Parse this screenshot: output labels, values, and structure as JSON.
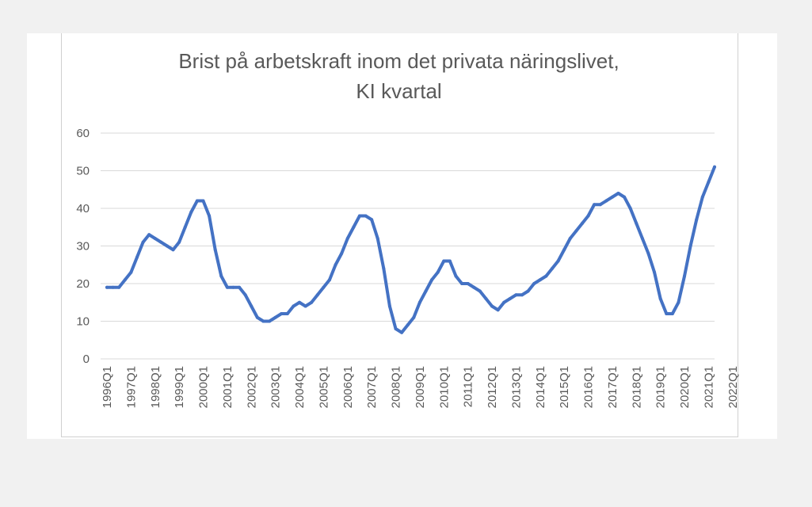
{
  "chart_data": {
    "type": "line",
    "title_line1": "Brist på arbetskraft inom det privata näringslivet,",
    "title_line2": "KI kvartal",
    "xlabel": "",
    "ylabel": "",
    "ylim": [
      0,
      60
    ],
    "yticks": [
      "0",
      "10",
      "20",
      "30",
      "40",
      "50",
      "60"
    ],
    "grid": true,
    "line_color": "#4472C4",
    "x_tick_labels": [
      "1996Q1",
      "1997Q1",
      "1998Q1",
      "1999Q1",
      "2000Q1",
      "2001Q1",
      "2002Q1",
      "2003Q1",
      "2004Q1",
      "2005Q1",
      "2006Q1",
      "2007Q1",
      "2008Q1",
      "2009Q1",
      "2010Q1",
      "2011Q1",
      "2012Q1",
      "2013Q1",
      "2014Q1",
      "2015Q1",
      "2016Q1",
      "2017Q1",
      "2018Q1",
      "2019Q1",
      "2020Q1",
      "2021Q1",
      "2022Q1"
    ],
    "series": [
      {
        "values": [
          19,
          19,
          19,
          21,
          23,
          27,
          31,
          33,
          32,
          31,
          30,
          29,
          31,
          35,
          39,
          42,
          42,
          38,
          29,
          22,
          19,
          19,
          19,
          17,
          14,
          11,
          10,
          10,
          11,
          12,
          12,
          14,
          15,
          14,
          15,
          17,
          19,
          21,
          25,
          28,
          32,
          35,
          38,
          38,
          37,
          32,
          24,
          14,
          8,
          7,
          9,
          11,
          15,
          18,
          21,
          23,
          26,
          26,
          22,
          20,
          20,
          19,
          18,
          16,
          14,
          13,
          15,
          16,
          17,
          17,
          18,
          20,
          21,
          22,
          24,
          26,
          29,
          32,
          34,
          36,
          38,
          41,
          41,
          42,
          43,
          44,
          43,
          40,
          36,
          32,
          28,
          23,
          16,
          12,
          12,
          15,
          22,
          30,
          37,
          43,
          47,
          51
        ]
      }
    ]
  }
}
